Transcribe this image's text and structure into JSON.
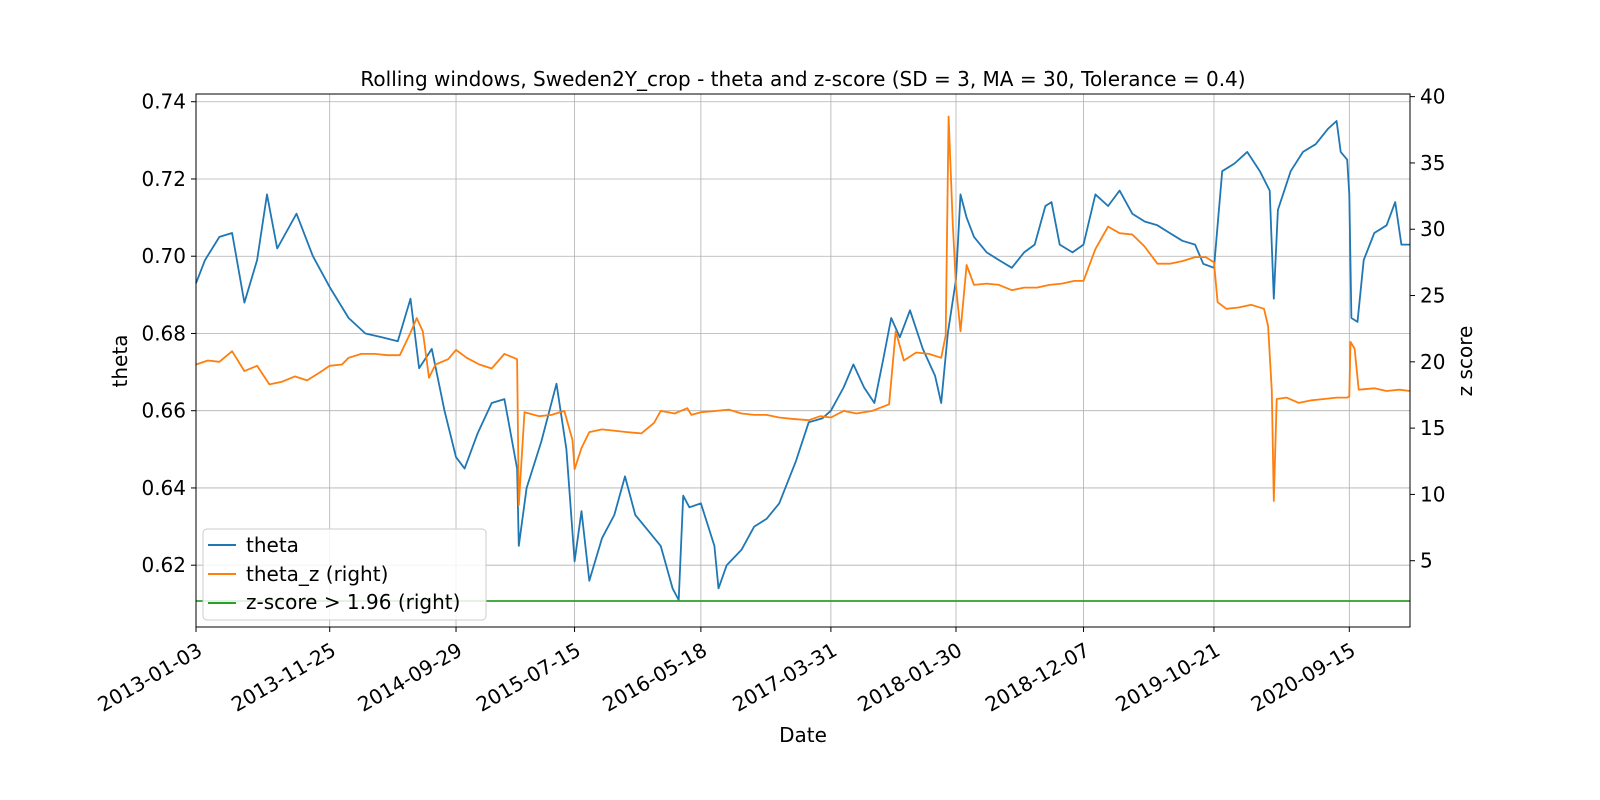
{
  "chart_data": {
    "type": "line",
    "title": "Rolling windows, Sweden2Y_crop - theta and z-score (SD = 3, MA = 30, Tolerance  = 0.4)",
    "xlabel": "Date",
    "ylabel": "theta",
    "y2label": "z score",
    "x_ticks": [
      "2013-01-03",
      "2013-11-25",
      "2014-09-29",
      "2015-07-15",
      "2016-05-18",
      "2017-03-31",
      "2018-01-30",
      "2018-12-07",
      "2019-10-21",
      "2020-09-15"
    ],
    "xlim": [
      "2013-01-03",
      "2021-02-10"
    ],
    "ylim": [
      0.604,
      0.742
    ],
    "y2lim": [
      0,
      40.2
    ],
    "y_ticks": [
      0.62,
      0.64,
      0.66,
      0.68,
      0.7,
      0.72,
      0.74
    ],
    "y_tick_labels": [
      "0.62",
      "0.64",
      "0.66",
      "0.68",
      "0.70",
      "0.72",
      "0.74"
    ],
    "y2_ticks": [
      5,
      10,
      15,
      20,
      25,
      30,
      35,
      40
    ],
    "grid": true,
    "legend_position": "lower-left",
    "colors": {
      "theta": "#1f77b4",
      "theta_z": "#ff7f0e",
      "threshold": "#2ca02c"
    },
    "series": [
      {
        "name": "theta",
        "axis": "left",
        "points": [
          [
            "2013-01-03",
            0.693
          ],
          [
            "2013-01-25",
            0.699
          ],
          [
            "2013-03-01",
            0.705
          ],
          [
            "2013-04-01",
            0.706
          ],
          [
            "2013-05-01",
            0.688
          ],
          [
            "2013-06-01",
            0.699
          ],
          [
            "2013-06-25",
            0.716
          ],
          [
            "2013-07-20",
            0.702
          ],
          [
            "2013-09-05",
            0.711
          ],
          [
            "2013-10-15",
            0.7
          ],
          [
            "2013-11-25",
            0.692
          ],
          [
            "2014-01-10",
            0.684
          ],
          [
            "2014-02-20",
            0.68
          ],
          [
            "2014-04-01",
            0.679
          ],
          [
            "2014-05-10",
            0.678
          ],
          [
            "2014-06-10",
            0.689
          ],
          [
            "2014-07-01",
            0.671
          ],
          [
            "2014-08-01",
            0.676
          ],
          [
            "2014-09-01",
            0.66
          ],
          [
            "2014-09-29",
            0.648
          ],
          [
            "2014-10-20",
            0.645
          ],
          [
            "2014-11-20",
            0.654
          ],
          [
            "2014-12-25",
            0.662
          ],
          [
            "2015-01-25",
            0.663
          ],
          [
            "2015-02-25",
            0.645
          ],
          [
            "2015-03-01",
            0.625
          ],
          [
            "2015-03-20",
            0.64
          ],
          [
            "2015-04-25",
            0.652
          ],
          [
            "2015-06-01",
            0.667
          ],
          [
            "2015-06-25",
            0.65
          ],
          [
            "2015-07-15",
            0.621
          ],
          [
            "2015-08-01",
            0.634
          ],
          [
            "2015-08-20",
            0.616
          ],
          [
            "2015-09-20",
            0.627
          ],
          [
            "2015-10-20",
            0.633
          ],
          [
            "2015-11-15",
            0.643
          ],
          [
            "2015-12-10",
            0.633
          ],
          [
            "2016-01-10",
            0.629
          ],
          [
            "2016-02-10",
            0.625
          ],
          [
            "2016-03-10",
            0.614
          ],
          [
            "2016-03-25",
            0.611
          ],
          [
            "2016-04-05",
            0.638
          ],
          [
            "2016-04-20",
            0.635
          ],
          [
            "2016-05-18",
            0.636
          ],
          [
            "2016-06-20",
            0.625
          ],
          [
            "2016-06-30",
            0.614
          ],
          [
            "2016-07-20",
            0.62
          ],
          [
            "2016-08-25",
            0.624
          ],
          [
            "2016-09-25",
            0.63
          ],
          [
            "2016-10-25",
            0.632
          ],
          [
            "2016-11-25",
            0.636
          ],
          [
            "2017-01-05",
            0.647
          ],
          [
            "2017-02-05",
            0.657
          ],
          [
            "2017-03-10",
            0.658
          ],
          [
            "2017-03-31",
            0.66
          ],
          [
            "2017-05-01",
            0.666
          ],
          [
            "2017-05-25",
            0.672
          ],
          [
            "2017-06-20",
            0.666
          ],
          [
            "2017-07-15",
            0.662
          ],
          [
            "2017-08-05",
            0.673
          ],
          [
            "2017-08-25",
            0.684
          ],
          [
            "2017-09-15",
            0.679
          ],
          [
            "2017-10-10",
            0.686
          ],
          [
            "2017-11-10",
            0.676
          ],
          [
            "2017-12-10",
            0.669
          ],
          [
            "2017-12-25",
            0.662
          ],
          [
            "2018-01-10",
            0.68
          ],
          [
            "2018-01-30",
            0.694
          ],
          [
            "2018-02-10",
            0.716
          ],
          [
            "2018-02-25",
            0.71
          ],
          [
            "2018-03-15",
            0.705
          ],
          [
            "2018-04-15",
            0.701
          ],
          [
            "2018-05-15",
            0.699
          ],
          [
            "2018-06-15",
            0.697
          ],
          [
            "2018-07-15",
            0.701
          ],
          [
            "2018-08-10",
            0.703
          ],
          [
            "2018-09-05",
            0.713
          ],
          [
            "2018-09-20",
            0.714
          ],
          [
            "2018-10-10",
            0.703
          ],
          [
            "2018-11-10",
            0.701
          ],
          [
            "2018-12-07",
            0.703
          ],
          [
            "2019-01-05",
            0.716
          ],
          [
            "2019-02-05",
            0.713
          ],
          [
            "2019-03-05",
            0.717
          ],
          [
            "2019-04-05",
            0.711
          ],
          [
            "2019-05-05",
            0.709
          ],
          [
            "2019-06-05",
            0.708
          ],
          [
            "2019-07-05",
            0.706
          ],
          [
            "2019-08-05",
            0.704
          ],
          [
            "2019-09-05",
            0.703
          ],
          [
            "2019-09-25",
            0.698
          ],
          [
            "2019-10-21",
            0.697
          ],
          [
            "2019-11-10",
            0.722
          ],
          [
            "2019-12-10",
            0.724
          ],
          [
            "2020-01-10",
            0.727
          ],
          [
            "2020-02-10",
            0.722
          ],
          [
            "2020-03-05",
            0.717
          ],
          [
            "2020-03-15",
            0.689
          ],
          [
            "2020-03-25",
            0.712
          ],
          [
            "2020-04-25",
            0.722
          ],
          [
            "2020-05-25",
            0.727
          ],
          [
            "2020-06-25",
            0.729
          ],
          [
            "2020-07-25",
            0.733
          ],
          [
            "2020-08-15",
            0.735
          ],
          [
            "2020-08-25",
            0.727
          ],
          [
            "2020-09-10",
            0.725
          ],
          [
            "2020-09-15",
            0.716
          ],
          [
            "2020-09-20",
            0.684
          ],
          [
            "2020-10-05",
            0.683
          ],
          [
            "2020-10-20",
            0.699
          ],
          [
            "2020-11-15",
            0.706
          ],
          [
            "2020-12-15",
            0.708
          ],
          [
            "2021-01-05",
            0.714
          ],
          [
            "2021-01-20",
            0.703
          ],
          [
            "2021-02-10",
            0.703
          ]
        ]
      },
      {
        "name": "theta_z (right)",
        "axis": "right",
        "points": [
          [
            "2013-01-03",
            19.8
          ],
          [
            "2013-02-01",
            20.1
          ],
          [
            "2013-03-01",
            20.0
          ],
          [
            "2013-04-01",
            20.8
          ],
          [
            "2013-05-01",
            19.3
          ],
          [
            "2013-06-01",
            19.7
          ],
          [
            "2013-07-01",
            18.3
          ],
          [
            "2013-08-01",
            18.5
          ],
          [
            "2013-09-01",
            18.9
          ],
          [
            "2013-10-01",
            18.6
          ],
          [
            "2013-11-01",
            19.2
          ],
          [
            "2013-11-25",
            19.7
          ],
          [
            "2013-12-25",
            19.8
          ],
          [
            "2014-01-10",
            20.3
          ],
          [
            "2014-02-10",
            20.6
          ],
          [
            "2014-03-15",
            20.6
          ],
          [
            "2014-04-15",
            20.5
          ],
          [
            "2014-05-15",
            20.5
          ],
          [
            "2014-06-10",
            22.2
          ],
          [
            "2014-06-25",
            23.3
          ],
          [
            "2014-07-10",
            22.3
          ],
          [
            "2014-07-25",
            18.8
          ],
          [
            "2014-08-10",
            19.8
          ],
          [
            "2014-09-10",
            20.2
          ],
          [
            "2014-09-29",
            20.9
          ],
          [
            "2014-10-25",
            20.3
          ],
          [
            "2014-11-25",
            19.8
          ],
          [
            "2014-12-25",
            19.5
          ],
          [
            "2015-01-25",
            20.6
          ],
          [
            "2015-02-25",
            20.2
          ],
          [
            "2015-03-01",
            9.2
          ],
          [
            "2015-03-15",
            16.2
          ],
          [
            "2015-04-20",
            15.9
          ],
          [
            "2015-05-20",
            16.0
          ],
          [
            "2015-06-20",
            16.3
          ],
          [
            "2015-07-10",
            14.1
          ],
          [
            "2015-07-15",
            11.9
          ],
          [
            "2015-08-01",
            13.5
          ],
          [
            "2015-08-20",
            14.7
          ],
          [
            "2015-09-20",
            14.9
          ],
          [
            "2015-11-20",
            14.7
          ],
          [
            "2015-12-25",
            14.6
          ],
          [
            "2016-01-25",
            15.4
          ],
          [
            "2016-02-10",
            16.3
          ],
          [
            "2016-03-15",
            16.1
          ],
          [
            "2016-04-15",
            16.5
          ],
          [
            "2016-04-25",
            16.0
          ],
          [
            "2016-05-18",
            16.2
          ],
          [
            "2016-06-25",
            16.3
          ],
          [
            "2016-07-25",
            16.4
          ],
          [
            "2016-08-25",
            16.1
          ],
          [
            "2016-09-25",
            16.0
          ],
          [
            "2016-10-25",
            16.0
          ],
          [
            "2016-11-25",
            15.8
          ],
          [
            "2016-12-25",
            15.7
          ],
          [
            "2017-02-05",
            15.6
          ],
          [
            "2017-03-05",
            15.9
          ],
          [
            "2017-03-31",
            15.8
          ],
          [
            "2017-05-01",
            16.3
          ],
          [
            "2017-06-01",
            16.1
          ],
          [
            "2017-07-10",
            16.3
          ],
          [
            "2017-08-20",
            16.8
          ],
          [
            "2017-09-05",
            22.3
          ],
          [
            "2017-09-25",
            20.1
          ],
          [
            "2017-10-25",
            20.7
          ],
          [
            "2017-11-25",
            20.6
          ],
          [
            "2017-12-25",
            20.3
          ],
          [
            "2018-01-05",
            22.0
          ],
          [
            "2018-01-12",
            38.5
          ],
          [
            "2018-01-22",
            30.5
          ],
          [
            "2018-01-30",
            25.7
          ],
          [
            "2018-02-10",
            22.3
          ],
          [
            "2018-02-25",
            27.3
          ],
          [
            "2018-03-15",
            25.8
          ],
          [
            "2018-04-15",
            25.9
          ],
          [
            "2018-05-15",
            25.8
          ],
          [
            "2018-06-15",
            25.4
          ],
          [
            "2018-07-15",
            25.6
          ],
          [
            "2018-08-15",
            25.6
          ],
          [
            "2018-09-15",
            25.8
          ],
          [
            "2018-10-15",
            25.9
          ],
          [
            "2018-11-15",
            26.1
          ],
          [
            "2018-12-07",
            26.1
          ],
          [
            "2019-01-05",
            28.5
          ],
          [
            "2019-02-05",
            30.2
          ],
          [
            "2019-03-05",
            29.7
          ],
          [
            "2019-04-05",
            29.6
          ],
          [
            "2019-05-05",
            28.7
          ],
          [
            "2019-06-05",
            27.4
          ],
          [
            "2019-07-05",
            27.4
          ],
          [
            "2019-08-05",
            27.6
          ],
          [
            "2019-09-05",
            27.9
          ],
          [
            "2019-10-01",
            27.9
          ],
          [
            "2019-10-21",
            27.5
          ],
          [
            "2019-10-30",
            24.5
          ],
          [
            "2019-11-20",
            24.0
          ],
          [
            "2019-12-20",
            24.1
          ],
          [
            "2020-01-20",
            24.3
          ],
          [
            "2020-02-20",
            24.0
          ],
          [
            "2020-03-01",
            22.7
          ],
          [
            "2020-03-10",
            17.8
          ],
          [
            "2020-03-15",
            9.5
          ],
          [
            "2020-03-22",
            17.2
          ],
          [
            "2020-04-15",
            17.3
          ],
          [
            "2020-05-15",
            16.9
          ],
          [
            "2020-06-15",
            17.1
          ],
          [
            "2020-07-15",
            17.2
          ],
          [
            "2020-08-15",
            17.3
          ],
          [
            "2020-09-10",
            17.3
          ],
          [
            "2020-09-15",
            17.4
          ],
          [
            "2020-09-18",
            21.5
          ],
          [
            "2020-09-28",
            21.0
          ],
          [
            "2020-10-08",
            17.9
          ],
          [
            "2020-11-15",
            18.0
          ],
          [
            "2020-12-15",
            17.8
          ],
          [
            "2021-01-15",
            17.9
          ],
          [
            "2021-02-10",
            17.8
          ]
        ]
      },
      {
        "name": "z-score > 1.96 (right)",
        "axis": "right",
        "points": [
          [
            "2013-01-03",
            1.96
          ],
          [
            "2021-02-10",
            1.96
          ]
        ]
      }
    ]
  }
}
